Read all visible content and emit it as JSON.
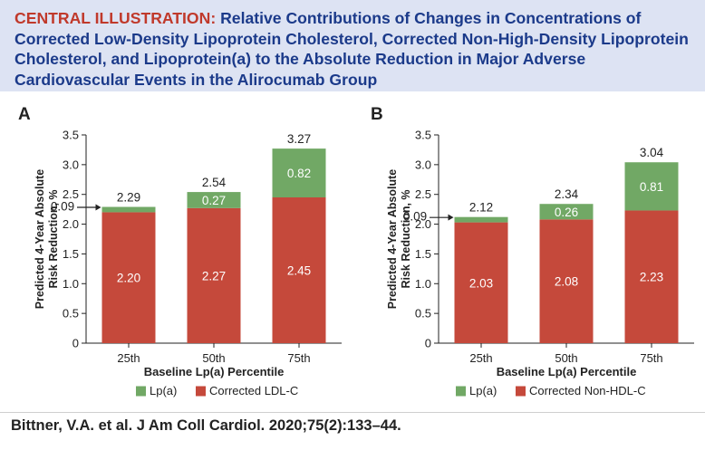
{
  "header": {
    "lead": "CENTRAL ILLUSTRATION:",
    "title": "Relative Contributions of Changes in Concentrations of Corrected Low-Density Lipoprotein Cholesterol, Corrected Non-High-Density Lipoprotein Cholesterol, and Lipoprotein(a) to the Absolute Reduction in Major Adverse Cardiovascular Events in the Alirocumab Group"
  },
  "colors": {
    "lpa": "#71a865",
    "chol": "#c5493b",
    "axis": "#222222",
    "header_bg": "#dde3f3",
    "header_text": "#1b3a8a",
    "header_lead": "#c0392b"
  },
  "chart_data": [
    {
      "panel": "A",
      "type": "bar",
      "stacked": true,
      "categories": [
        "25th",
        "50th",
        "75th"
      ],
      "series": [
        {
          "name": "Corrected LDL-C",
          "values": [
            2.2,
            2.27,
            2.45
          ],
          "labels": [
            "2.20",
            "2.27",
            "2.45"
          ]
        },
        {
          "name": "Lp(a)",
          "values": [
            0.09,
            0.27,
            0.82
          ],
          "labels": [
            "0.09",
            "0.27",
            "0.82"
          ]
        }
      ],
      "totals": [
        "2.29",
        "2.54",
        "3.27"
      ],
      "xlabel": "Baseline Lp(a) Percentile",
      "ylabel": [
        "Predicted 4-Year Absolute",
        "Risk Reduction, %"
      ],
      "ylim": [
        0,
        3.5
      ],
      "yticks": [
        "0",
        "0.5",
        "1.0",
        "1.5",
        "2.0",
        "2.5",
        "3.0",
        "3.5"
      ],
      "legend": [
        {
          "label": "Lp(a)",
          "series": "lpa"
        },
        {
          "label": "Corrected LDL-C",
          "series": "chol"
        }
      ],
      "legend_position": "bottom",
      "grid": false
    },
    {
      "panel": "B",
      "type": "bar",
      "stacked": true,
      "categories": [
        "25th",
        "50th",
        "75th"
      ],
      "series": [
        {
          "name": "Corrected Non-HDL-C",
          "values": [
            2.03,
            2.08,
            2.23
          ],
          "labels": [
            "2.03",
            "2.08",
            "2.23"
          ]
        },
        {
          "name": "Lp(a)",
          "values": [
            0.09,
            0.26,
            0.81
          ],
          "labels": [
            "0.09",
            "0.26",
            "0.81"
          ]
        }
      ],
      "totals": [
        "2.12",
        "2.34",
        "3.04"
      ],
      "xlabel": "Baseline Lp(a) Percentile",
      "ylabel": [
        "Predicted 4-Year Absolute",
        "Risk Reduction, %"
      ],
      "ylim": [
        0,
        3.5
      ],
      "yticks": [
        "0",
        "0.5",
        "1.0",
        "1.5",
        "2.0",
        "2.5",
        "3.0",
        "3.5"
      ],
      "legend": [
        {
          "label": "Lp(a)",
          "series": "lpa"
        },
        {
          "label": "Corrected Non-HDL-C",
          "series": "chol"
        }
      ],
      "legend_position": "bottom",
      "grid": false
    }
  ],
  "citation": "Bittner, V.A. et al. J Am Coll Cardiol. 2020;75(2):133–44."
}
